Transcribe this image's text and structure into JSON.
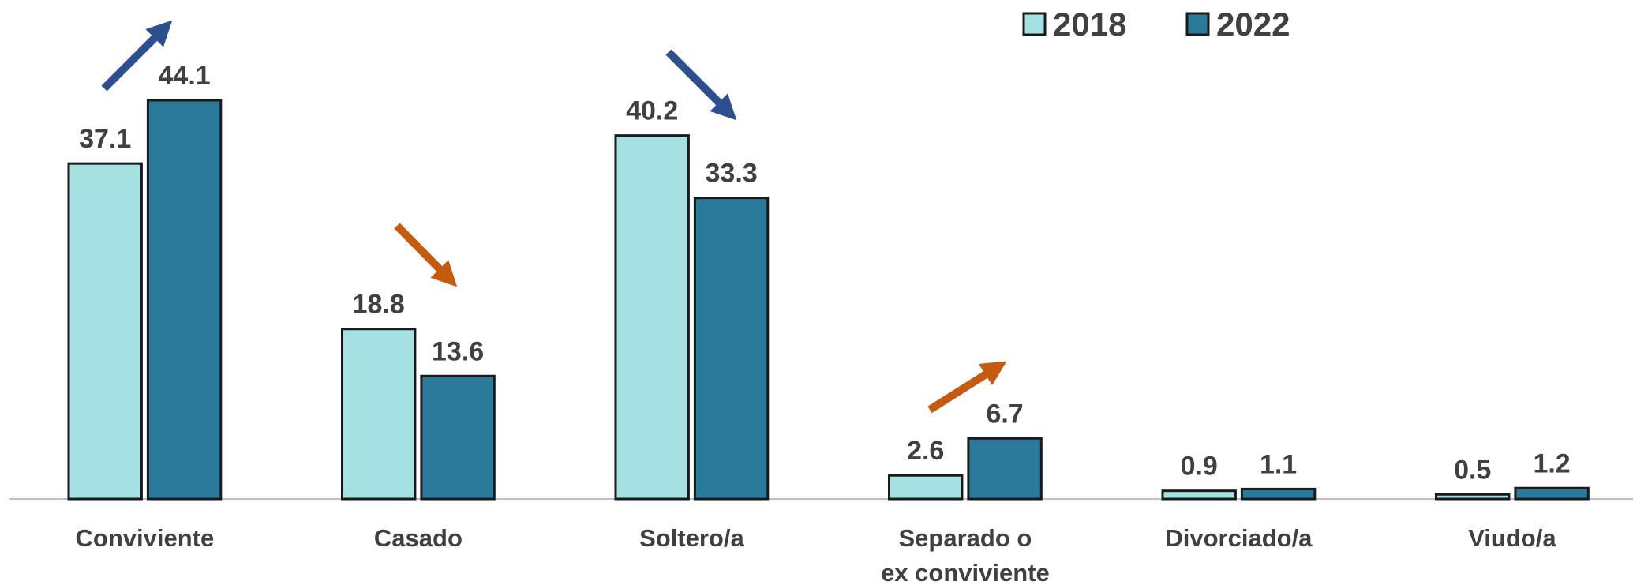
{
  "chart_data": {
    "type": "bar",
    "categories": [
      "Conviviente",
      "Casado",
      "Soltero/a",
      "Separado o\nex conviviente",
      "Divorciado/a",
      "Viudo/a"
    ],
    "series": [
      {
        "name": "2018",
        "color": "#a5e0e2",
        "values": [
          37.1,
          18.8,
          40.2,
          2.6,
          0.9,
          0.5
        ]
      },
      {
        "name": "2022",
        "color": "#2b7a9b",
        "values": [
          44.1,
          13.6,
          33.3,
          6.7,
          1.1,
          1.2
        ]
      }
    ],
    "legend": "top-right"
  }
}
